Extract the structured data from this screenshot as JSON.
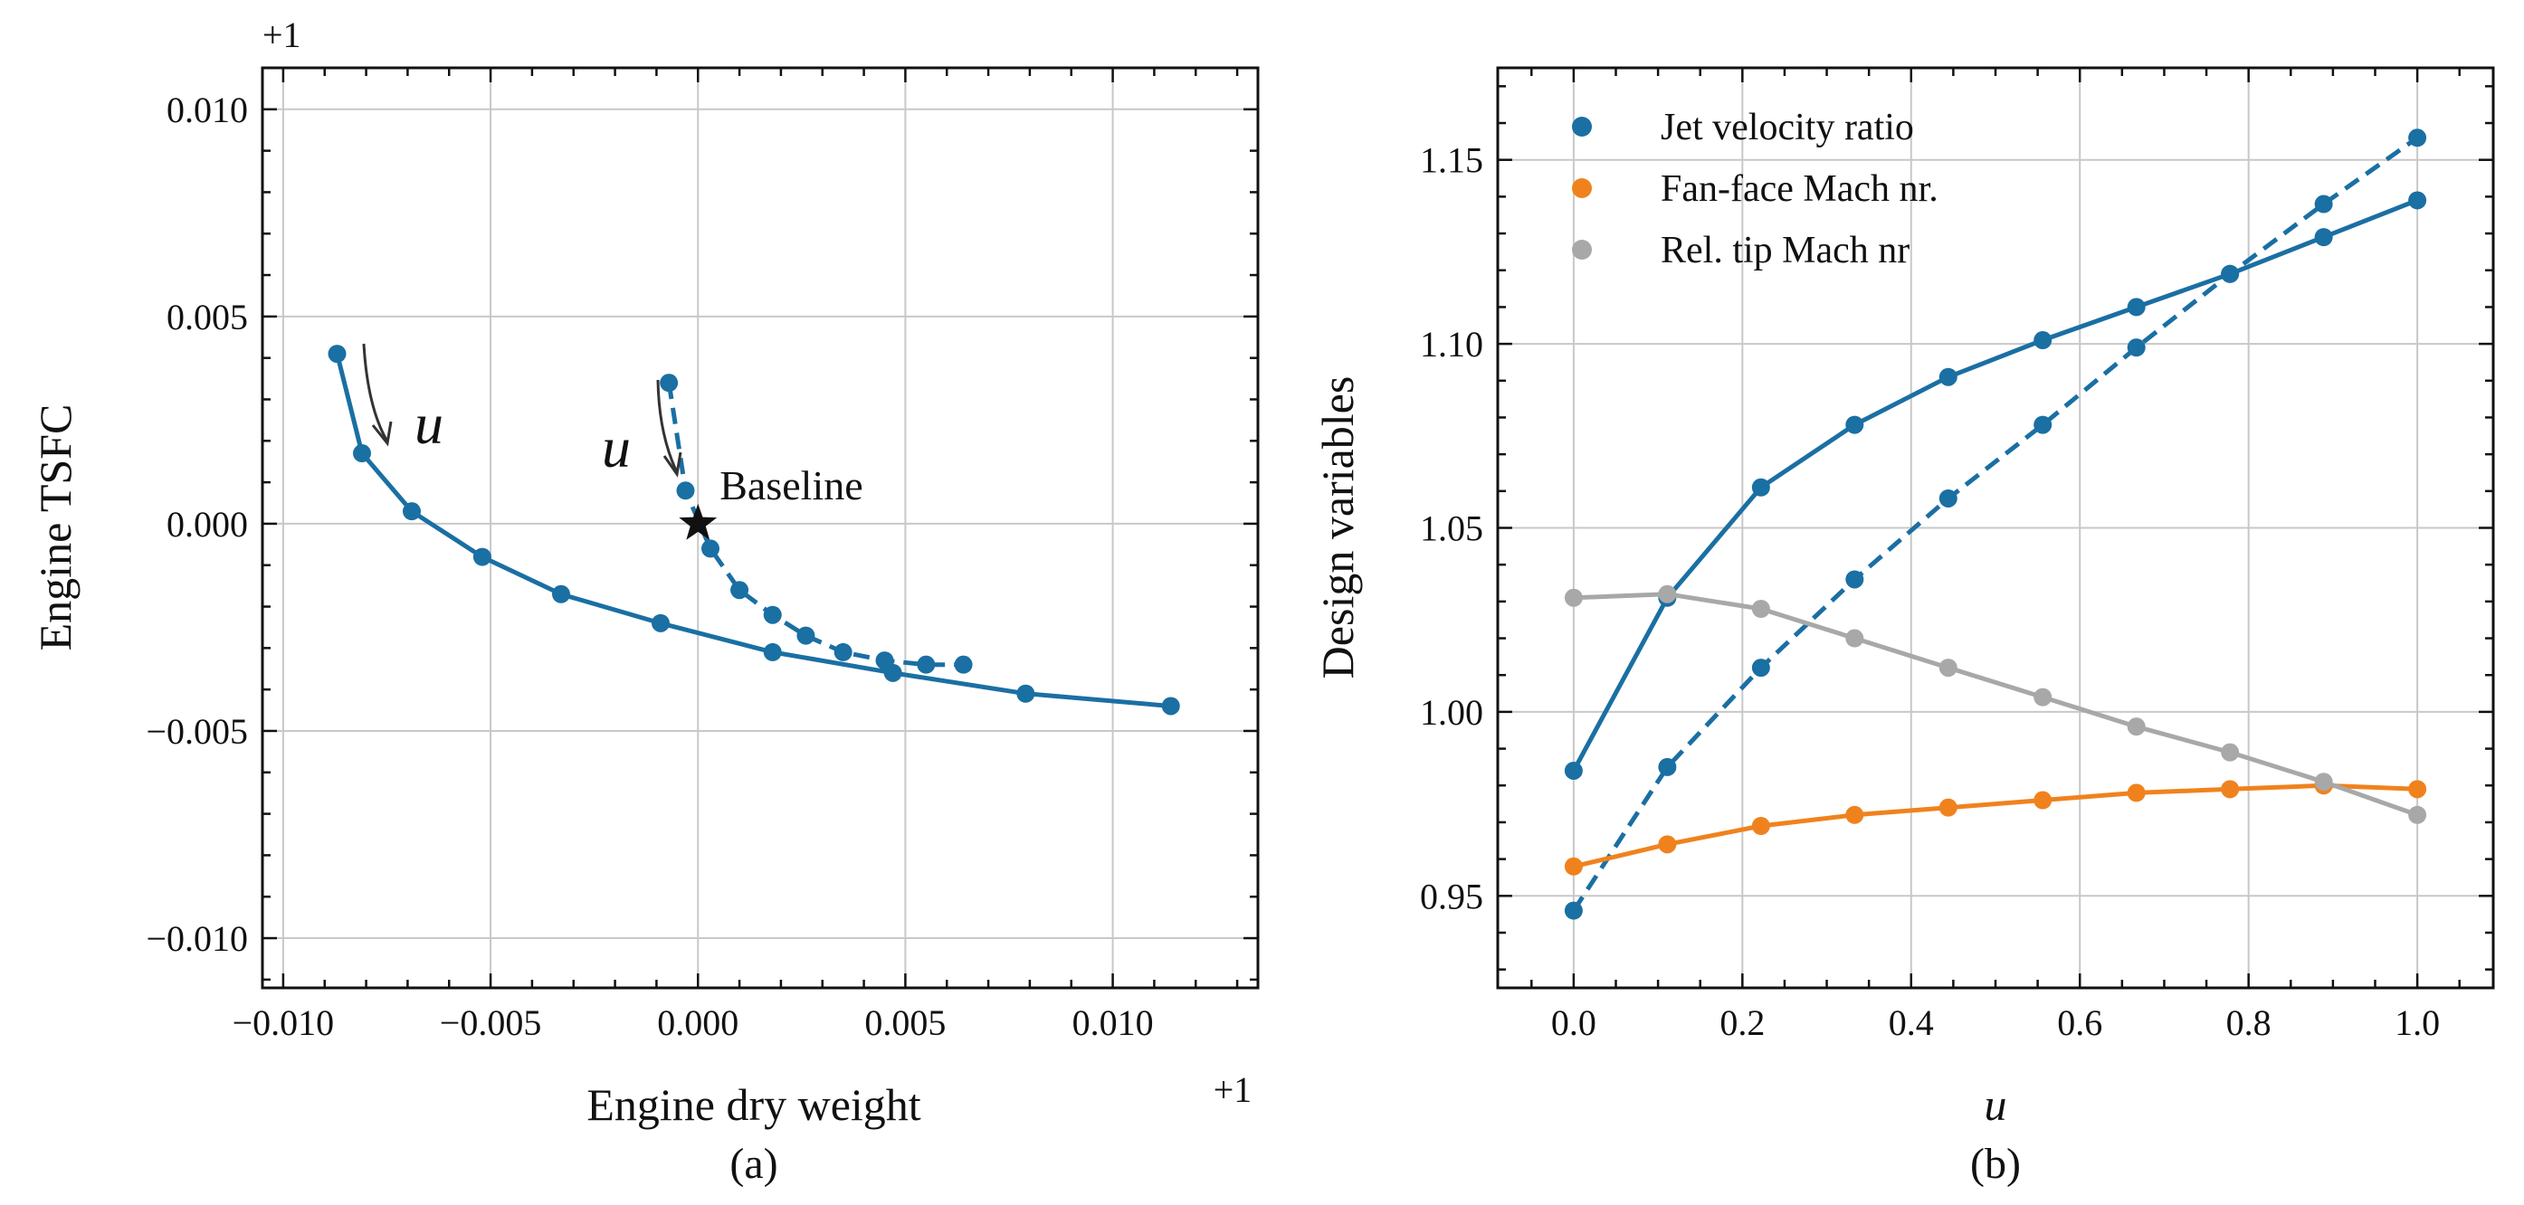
{
  "chart_data": [
    {
      "panel": "(a)",
      "type": "line",
      "xlabel": "Engine dry weight",
      "ylabel": "Engine TSFC",
      "x_offset_label": "+1",
      "y_offset_label": "+1",
      "xlim": [
        -0.0105,
        0.0135
      ],
      "ylim": [
        -0.0112,
        0.011
      ],
      "xticks": [
        -0.01,
        -0.005,
        0.0,
        0.005,
        0.01
      ],
      "xtick_labels": [
        "−0.010",
        "−0.005",
        "0.000",
        "0.005",
        "0.010"
      ],
      "yticks": [
        -0.01,
        -0.005,
        0.0,
        0.005,
        0.01
      ],
      "ytick_labels": [
        "−0.010",
        "−0.005",
        "0.000",
        "0.005",
        "0.010"
      ],
      "grid": true,
      "series": [
        {
          "name": "solid",
          "color": "#1a6fa3",
          "style": "solid",
          "x": [
            -0.0087,
            -0.0081,
            -0.0069,
            -0.0052,
            -0.0033,
            -0.0009,
            0.0018,
            0.0047,
            0.0079,
            0.0114
          ],
          "y": [
            0.0041,
            0.0017,
            0.0003,
            -0.0008,
            -0.0017,
            -0.0024,
            -0.0031,
            -0.0036,
            -0.0041,
            -0.0044
          ]
        },
        {
          "name": "dashed",
          "color": "#1a6fa3",
          "style": "dashed",
          "x": [
            -0.0007,
            -0.0003,
            0.0003,
            0.001,
            0.0018,
            0.0026,
            0.0035,
            0.0045,
            0.0055,
            0.0064
          ],
          "y": [
            0.0034,
            0.0008,
            -0.0006,
            -0.0016,
            -0.0022,
            -0.0027,
            -0.0031,
            -0.0033,
            -0.0034,
            -0.0034
          ]
        }
      ],
      "baseline": {
        "x": 0.0,
        "y": 0.0,
        "label": "Baseline"
      },
      "annotations": [
        {
          "text": "u",
          "near": "left-arrow"
        },
        {
          "text": "u",
          "near": "center-arrow"
        }
      ]
    },
    {
      "panel": "(b)",
      "type": "line",
      "xlabel": "u",
      "ylabel": "Design variables",
      "xlim": [
        -0.09,
        1.09
      ],
      "ylim": [
        0.925,
        1.175
      ],
      "xticks": [
        0.0,
        0.2,
        0.4,
        0.6,
        0.8,
        1.0
      ],
      "xtick_labels": [
        "0.0",
        "0.2",
        "0.4",
        "0.6",
        "0.8",
        "1.0"
      ],
      "yticks": [
        0.95,
        1.0,
        1.05,
        1.1,
        1.15
      ],
      "ytick_labels": [
        "0.95",
        "1.00",
        "1.05",
        "1.10",
        "1.15"
      ],
      "grid": true,
      "legend_position": "top-left",
      "legend": [
        {
          "label": "Jet velocity ratio",
          "color": "#1a6fa3"
        },
        {
          "label": "Fan-face Mach nr.",
          "color": "#f0821e"
        },
        {
          "label": "Rel. tip Mach nr",
          "color": "#a8a8a8"
        }
      ],
      "x": [
        0.0,
        0.111,
        0.222,
        0.333,
        0.444,
        0.556,
        0.667,
        0.778,
        0.889,
        1.0
      ],
      "series": [
        {
          "name": "Jet velocity ratio (solid)",
          "color": "#1a6fa3",
          "style": "solid",
          "values": [
            0.984,
            1.031,
            1.061,
            1.078,
            1.091,
            1.101,
            1.11,
            1.119,
            1.129,
            1.139
          ]
        },
        {
          "name": "Jet velocity ratio (dashed)",
          "color": "#1a6fa3",
          "style": "dashed",
          "values": [
            0.946,
            0.985,
            1.012,
            1.036,
            1.058,
            1.078,
            1.099,
            1.119,
            1.138,
            1.156
          ]
        },
        {
          "name": "Fan-face Mach nr.",
          "color": "#f0821e",
          "style": "solid",
          "values": [
            0.958,
            0.964,
            0.969,
            0.972,
            0.974,
            0.976,
            0.978,
            0.979,
            0.98,
            0.979
          ]
        },
        {
          "name": "Rel. tip Mach nr",
          "color": "#a8a8a8",
          "style": "solid",
          "values": [
            1.031,
            1.032,
            1.028,
            1.02,
            1.012,
            1.004,
            0.996,
            0.989,
            0.981,
            0.972
          ]
        }
      ]
    }
  ]
}
